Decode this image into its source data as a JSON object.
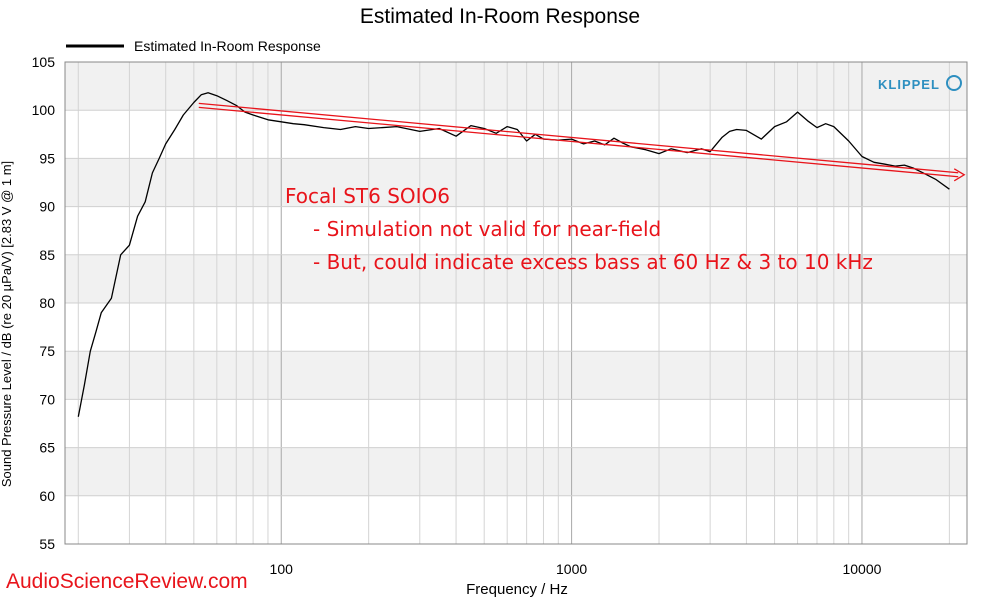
{
  "chart_data": {
    "type": "line",
    "title": "Estimated In-Room Response",
    "xlabel": "Frequency / Hz",
    "ylabel": "Sound Pressure Level / dB (re 20 µPa/V)  [2.83  V @ 1  m]",
    "x_scale": "log",
    "xlim": [
      18,
      23000
    ],
    "ylim": [
      55,
      105
    ],
    "x_ticks": [
      100,
      1000,
      10000
    ],
    "x_tick_labels": [
      "100",
      "1000",
      "10000"
    ],
    "y_ticks": [
      55,
      60,
      65,
      70,
      75,
      80,
      85,
      90,
      95,
      100,
      105
    ],
    "y_tick_labels": [
      "55",
      "60",
      "65",
      "70",
      "75",
      "80",
      "85",
      "90",
      "95",
      "100",
      "105"
    ],
    "grid": true,
    "legend_position": "top-left",
    "series": [
      {
        "name": "Estimated In-Room Response",
        "color": "#000000",
        "x": [
          20,
          21,
          22,
          23,
          24,
          26,
          28,
          30,
          32,
          34,
          36,
          38,
          40,
          43,
          46,
          50,
          53,
          56,
          60,
          65,
          70,
          75,
          80,
          90,
          100,
          110,
          120,
          140,
          160,
          180,
          200,
          250,
          300,
          350,
          400,
          450,
          500,
          550,
          600,
          650,
          700,
          750,
          800,
          900,
          1000,
          1100,
          1200,
          1300,
          1400,
          1500,
          1600,
          1800,
          2000,
          2200,
          2500,
          2800,
          3000,
          3300,
          3500,
          3700,
          4000,
          4500,
          5000,
          5500,
          6000,
          6500,
          7000,
          7500,
          8000,
          9000,
          10000,
          11000,
          12000,
          13000,
          14000,
          15000,
          16000,
          18000,
          20000
        ],
        "y": [
          68.2,
          71.5,
          75.0,
          77.0,
          79.0,
          80.5,
          85.0,
          86.0,
          89.0,
          90.5,
          93.5,
          95.0,
          96.5,
          98.0,
          99.5,
          100.8,
          101.6,
          101.8,
          101.5,
          101.0,
          100.5,
          99.8,
          99.5,
          99.0,
          98.8,
          98.6,
          98.5,
          98.2,
          98.0,
          98.3,
          98.1,
          98.3,
          97.8,
          98.1,
          97.3,
          98.4,
          98.1,
          97.6,
          98.3,
          98.0,
          96.8,
          97.5,
          97.0,
          96.9,
          97.0,
          96.5,
          96.8,
          96.4,
          97.1,
          96.6,
          96.2,
          95.9,
          95.5,
          96.0,
          95.6,
          96.0,
          95.7,
          97.2,
          97.8,
          98.0,
          97.9,
          97.0,
          98.3,
          98.8,
          99.8,
          98.9,
          98.2,
          98.6,
          98.3,
          96.8,
          95.2,
          94.6,
          94.4,
          94.2,
          94.3,
          94.0,
          93.6,
          92.8,
          91.8
        ]
      },
      {
        "name": "",
        "color": "#e8141b",
        "x": [
          52,
          22500
        ],
        "y": [
          100.5,
          93.3
        ]
      }
    ]
  },
  "annotation": {
    "line1": "Focal ST6 SOIO6",
    "line2": "- Simulation not valid for near-field",
    "line3": "- But, could indicate excess bass at 60 Hz & 3 to 10 kHz"
  },
  "watermark": "AudioScienceReview.com",
  "logo": "KLIPPEL"
}
